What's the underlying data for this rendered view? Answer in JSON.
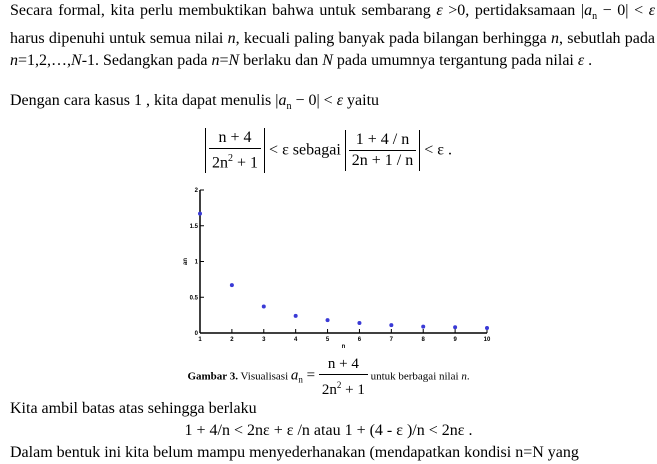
{
  "paragraph_1": [
    "Secara formal, kita perlu membuktikan bahwa untuk sembarang ",
    "ε",
    " >0, pertidaksamaan ",
    "|",
    "a",
    "n",
    " − 0| < ",
    "ε",
    " harus dipenuhi untuk semua nilai ",
    "n",
    ", kecuali paling banyak pada bilangan berhingga ",
    "n",
    ", sebutlah pada ",
    "n",
    "=1,2,…,",
    "N",
    "-1. Sedangkan pada ",
    "n",
    "=",
    "N",
    " berlaku dan ",
    "N",
    " pada umumnya tergantung pada nilai ",
    "ε",
    " ."
  ],
  "paragraph_2": [
    "Dengan cara kasus 1 , kita dapat menulis ",
    "|",
    "a",
    "n",
    " − 0| < ",
    "ε",
    " yaitu"
  ],
  "equation_1": {
    "left_numerator": "n + 4",
    "left_denominator": [
      "2n",
      "2",
      " + 1"
    ],
    "middle": "< ε  sebagai",
    "right_numerator": "1 + 4 / n",
    "right_denominator": "2n + 1 / n",
    "end": "< ε ."
  },
  "chart_data": {
    "type": "scatter",
    "x_label": "n",
    "y_label": "an",
    "color": "#3a3ad6",
    "x": [
      1,
      2,
      3,
      4,
      5,
      6,
      7,
      8,
      9,
      10
    ],
    "values": [
      1.67,
      0.67,
      0.37,
      0.24,
      0.18,
      0.14,
      0.11,
      0.09,
      0.08,
      0.07
    ],
    "xlim": [
      1,
      10
    ],
    "xticks": [
      1,
      2,
      3,
      4,
      5,
      6,
      7,
      8,
      9,
      10
    ],
    "ylim": [
      0,
      2
    ],
    "yticks": [
      0,
      0.5,
      1,
      1.5,
      2
    ]
  },
  "caption": {
    "label": "Gambar 3.",
    "text": " Visualisasi ",
    "a": "a",
    "sub": "n",
    "equals": " = ",
    "numerator": "n + 4",
    "denominator": [
      "2n",
      "2",
      " + 1"
    ],
    "tail": " untuk berbagai nilai ",
    "n": "n",
    "end": "."
  },
  "paragraph_3": "Kita ambil batas atas sehingga berlaku",
  "equation_2": "1 + 4/n < 2nε + ε /n  atau 1 + (4 - ε )/n < 2nε  .",
  "paragraph_4": "Dalam bentuk ini kita belum mampu menyederhanakan (mendapatkan kondisi n=N yang"
}
